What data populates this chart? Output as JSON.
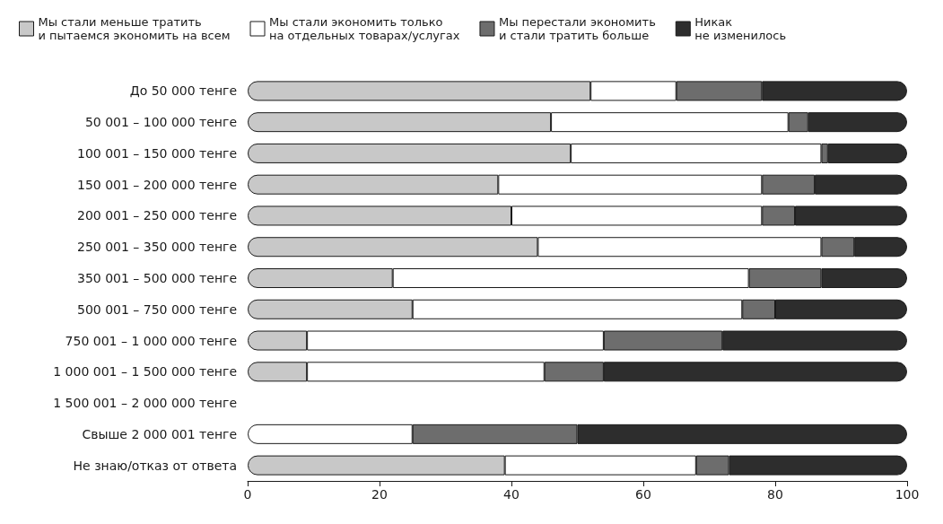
{
  "chart_data": {
    "type": "bar",
    "orientation": "horizontal",
    "stacked": true,
    "categories": [
      "До 50 000 тенге",
      "50 001 – 100 000 тенге",
      "100 001 – 150 000 тенге",
      "150 001 – 200 000 тенге",
      "200 001 – 250 000 тенге",
      "250 001 – 350 000 тенге",
      "350 001 – 500 000 тенге",
      "500 001 – 750 000 тенге",
      "750 001 – 1 000 000 тенге",
      "1 000 001 – 1 500 000 тенге",
      "1 500 001 – 2 000 000 тенге",
      "Свыше 2 000 001 тенге",
      "Не знаю/отказ от ответа"
    ],
    "series": [
      {
        "name": "Мы стали меньше тратить\nи пытаемся экономить на всем",
        "color": "#c8c8c8",
        "values": [
          52,
          46,
          49,
          38,
          40,
          44,
          22,
          25,
          9,
          9,
          0,
          0,
          39
        ]
      },
      {
        "name": "Мы стали экономить только\nна отдельных товарах/услугах",
        "color": "#ffffff",
        "values": [
          13,
          36,
          38,
          40,
          38,
          43,
          54,
          50,
          45,
          36,
          0,
          25,
          29
        ]
      },
      {
        "name": "Мы перестали экономить\nи стали тратить больше",
        "color": "#6d6d6d",
        "values": [
          13,
          3,
          1,
          8,
          5,
          5,
          11,
          5,
          18,
          9,
          0,
          25,
          5
        ]
      },
      {
        "name": "Никак\nне изменилось",
        "color": "#2d2d2d",
        "values": [
          22,
          15,
          12,
          14,
          17,
          8,
          13,
          20,
          28,
          46,
          0,
          50,
          27
        ]
      }
    ],
    "xlim": [
      0,
      100
    ],
    "xticks": [
      0,
      20,
      40,
      60,
      80,
      100
    ],
    "grid": false,
    "legend": "top"
  }
}
